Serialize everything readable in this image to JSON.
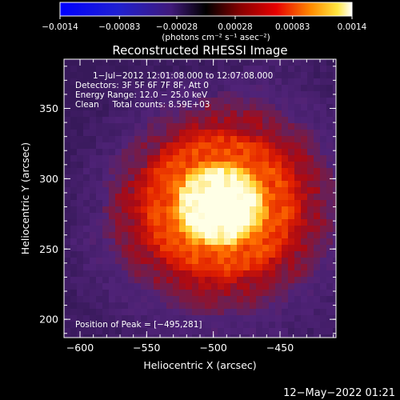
{
  "chart_data": {
    "type": "heatmap",
    "title": "Reconstructed RHESSI Image",
    "xlabel": "Heliocentric X (arcsec)",
    "ylabel": "Heliocentric Y (arcsec)",
    "xlim": [
      -612,
      -408
    ],
    "ylim": [
      187,
      385
    ],
    "x_ticks": [
      {
        "value": -600,
        "label": "−600"
      },
      {
        "value": -550,
        "label": "−550"
      },
      {
        "value": -500,
        "label": "−500"
      },
      {
        "value": -450,
        "label": "−450"
      }
    ],
    "y_ticks": [
      {
        "value": 200,
        "label": "200"
      },
      {
        "value": 250,
        "label": "250"
      },
      {
        "value": 300,
        "label": "300"
      },
      {
        "value": 350,
        "label": "350"
      }
    ],
    "info_lines": [
      "1−Jul−2012 12:01:08.000 to 12:07:08.000",
      "Detectors: 3F 5F 6F 7F 8F, Att 0",
      "Energy Range: 12.0 − 25.0 keV",
      "Clean     Total counts: 8.59E+03"
    ],
    "peak_label": "Position of Peak = [−495,281]",
    "peak": {
      "x": -495,
      "y": 281
    },
    "colorbar": {
      "range": [
        -0.0014,
        0.0014
      ],
      "ticks": [
        {
          "value": -0.0014,
          "label": "−0.0014"
        },
        {
          "value": -0.00083,
          "label": "−0.00083"
        },
        {
          "value": -0.00028,
          "label": "−0.00028"
        },
        {
          "value": 0.00028,
          "label": "0.00028"
        },
        {
          "value": 0.00083,
          "label": "0.00083"
        },
        {
          "value": 0.0014,
          "label": "0.0014"
        }
      ],
      "unit_label": "(photons cm⁻² s⁻¹ asec⁻²)"
    },
    "colors": {
      "blue": "#0000ff",
      "purple": "#5a2a8c",
      "red": "#cc0000",
      "orange": "#ff8c00",
      "yellow": "#ffff33",
      "white": "#ffffff"
    }
  },
  "footer": {
    "timestamp": "12−May−2022 01:21"
  }
}
